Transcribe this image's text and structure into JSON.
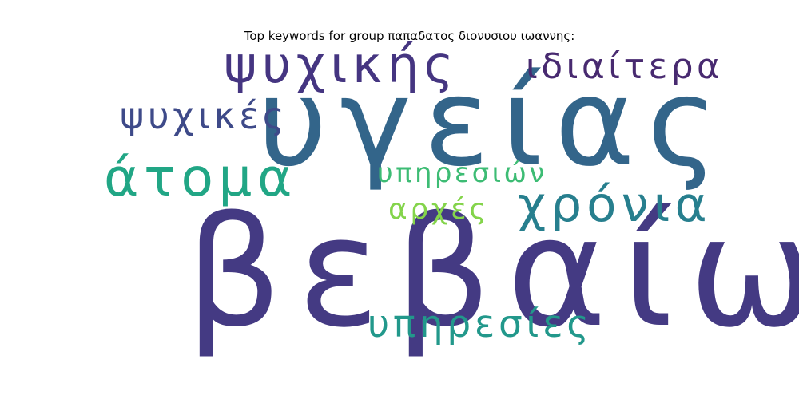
{
  "title": "Top keywords for group παπαδατος διονυσιου ιωαννης:",
  "words": [
    {
      "text": "υγείας",
      "color": "#33658a"
    },
    {
      "text": "βεβαίως",
      "color": "#443a83"
    },
    {
      "text": "ψυχικής",
      "color": "#453581"
    },
    {
      "text": "ιδιαίτερα",
      "color": "#482a70"
    },
    {
      "text": "ψυχικές",
      "color": "#3e4a89"
    },
    {
      "text": "άτομα",
      "color": "#21a685"
    },
    {
      "text": "υπηρεσιών",
      "color": "#3dbc74"
    },
    {
      "text": "χρόνια",
      "color": "#277f8e"
    },
    {
      "text": "αρχές",
      "color": "#84d44b"
    },
    {
      "text": "υπηρεσίες",
      "color": "#22988b"
    }
  ]
}
